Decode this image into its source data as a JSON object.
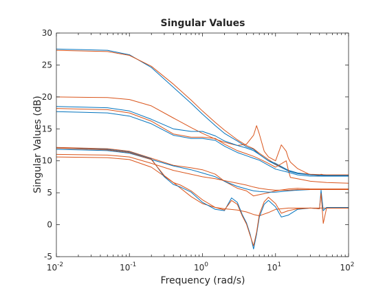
{
  "chart_data": {
    "type": "line",
    "title": "Singular Values",
    "xlabel": "Frequency (rad/s)",
    "ylabel": "Singular Values (dB)",
    "x_scale": "log",
    "xlim": [
      0.01,
      100
    ],
    "ylim": [
      -5,
      30
    ],
    "grid": false,
    "legend": "none",
    "x_ticks": [
      {
        "base": "10",
        "exp": "-2",
        "value": 0.01
      },
      {
        "base": "10",
        "exp": "-1",
        "value": 0.1
      },
      {
        "base": "10",
        "exp": "0",
        "value": 1
      },
      {
        "base": "10",
        "exp": "1",
        "value": 10
      },
      {
        "base": "10",
        "exp": "2",
        "value": 100
      }
    ],
    "y_ticks": [
      "-5",
      "0",
      "5",
      "10",
      "15",
      "20",
      "25",
      "30"
    ],
    "series": [
      {
        "color": "#0072BD",
        "x": [
          0.01,
          0.05,
          0.1,
          0.2,
          0.4,
          0.7,
          1,
          1.5,
          2,
          3,
          4,
          5,
          6,
          8,
          10,
          15,
          20,
          30,
          50,
          100
        ],
        "y": [
          27.5,
          27.3,
          26.6,
          24.6,
          21.5,
          19,
          17.3,
          15.5,
          14.3,
          13.1,
          12.2,
          11.8,
          11,
          10,
          9.4,
          8.4,
          8,
          7.8,
          7.7,
          7.7
        ]
      },
      {
        "color": "#D95319",
        "x": [
          0.01,
          0.05,
          0.1,
          0.2,
          0.4,
          0.7,
          1,
          1.5,
          2,
          3,
          4,
          5,
          6,
          8,
          10,
          15,
          20,
          30,
          50,
          100
        ],
        "y": [
          27.3,
          27.1,
          26.5,
          24.8,
          22,
          19.5,
          17.8,
          16,
          14.8,
          13.3,
          12.4,
          11.9,
          11.2,
          10.2,
          9.5,
          8.5,
          8.1,
          7.9,
          7.8,
          7.8
        ]
      },
      {
        "color": "#D95319",
        "x": [
          0.01,
          0.05,
          0.1,
          0.2,
          0.4,
          0.7,
          1,
          1.5,
          2,
          3,
          4,
          5,
          5.5,
          6,
          7,
          8,
          10,
          12,
          14,
          15,
          16,
          20,
          30,
          40,
          42,
          50,
          100
        ],
        "y": [
          20,
          19.9,
          19.6,
          18.6,
          16.7,
          15.2,
          14.3,
          13.4,
          12.9,
          12.4,
          12.6,
          14,
          15.5,
          14.2,
          11.5,
          10.6,
          10,
          12.5,
          11.5,
          10.4,
          9.8,
          8.8,
          7.8,
          7.7,
          7.9,
          7.7,
          7.7
        ]
      },
      {
        "color": "#0072BD",
        "x": [
          0.01,
          0.05,
          0.1,
          0.2,
          0.4,
          0.7,
          1,
          1.5,
          2,
          3,
          4,
          5,
          6,
          8,
          10,
          15,
          20,
          30,
          50,
          100
        ],
        "y": [
          18.5,
          18.3,
          17.8,
          16.5,
          15,
          14.6,
          14.6,
          13.9,
          13.1,
          12.4,
          12,
          11.6,
          11,
          10,
          9.6,
          8.5,
          8.1,
          7.8,
          7.7,
          7.7
        ]
      },
      {
        "color": "#D95319",
        "x": [
          0.01,
          0.05,
          0.1,
          0.2,
          0.4,
          0.7,
          1,
          1.5,
          2,
          3,
          4,
          5,
          6,
          8,
          10,
          14,
          15,
          16,
          20,
          30,
          50,
          100
        ],
        "y": [
          18.2,
          18,
          17.5,
          16.2,
          14.2,
          13.7,
          13.7,
          13.5,
          12.6,
          11.6,
          11.1,
          10.7,
          10.3,
          9.6,
          9,
          10,
          8.5,
          7.4,
          7.2,
          6.8,
          6.6,
          6.5
        ]
      },
      {
        "color": "#0072BD",
        "x": [
          0.01,
          0.05,
          0.1,
          0.2,
          0.4,
          0.7,
          1,
          1.5,
          2,
          3,
          4,
          5,
          6,
          8,
          10,
          15,
          20,
          30,
          50,
          100
        ],
        "y": [
          17.7,
          17.5,
          17,
          15.8,
          14,
          13.5,
          13.5,
          13.2,
          12.3,
          11.3,
          10.8,
          10.4,
          10.1,
          9.3,
          8.7,
          8.2,
          7.8,
          7.6,
          7.6,
          7.6
        ]
      },
      {
        "color": "#D95319",
        "x": [
          0.01,
          0.05,
          0.1,
          0.2,
          0.4,
          0.7,
          1,
          1.5,
          2,
          3,
          4,
          5,
          6,
          8,
          10,
          15,
          20,
          30,
          50,
          100
        ],
        "y": [
          12.1,
          11.9,
          11.5,
          10.4,
          9.3,
          8.9,
          8.6,
          7.9,
          6.8,
          5.7,
          5.3,
          4.5,
          4.7,
          5,
          5.3,
          5.6,
          5.7,
          5.6,
          5.6,
          5.6
        ]
      },
      {
        "color": "#0072BD",
        "x": [
          0.01,
          0.05,
          0.1,
          0.2,
          0.4,
          0.7,
          1,
          1.5,
          2,
          3,
          4,
          5,
          6,
          8,
          10,
          15,
          20,
          30,
          50,
          100
        ],
        "y": [
          11.8,
          11.6,
          11.2,
          10.2,
          9.2,
          8.6,
          8.1,
          7.5,
          6.8,
          6,
          5.6,
          5.3,
          5.2,
          5.1,
          5.1,
          5.3,
          5.4,
          5.5,
          5.5,
          5.5
        ]
      },
      {
        "color": "#D95319",
        "x": [
          0.01,
          0.05,
          0.1,
          0.2,
          0.4,
          0.7,
          1,
          1.5,
          2,
          3,
          4,
          5,
          6,
          8,
          10,
          15,
          20,
          30,
          50,
          100
        ],
        "y": [
          11,
          10.9,
          10.6,
          9.6,
          8.5,
          7.9,
          7.5,
          7.2,
          6.9,
          6.5,
          6.2,
          5.9,
          5.7,
          5.5,
          5.4,
          5.4,
          5.5,
          5.5,
          5.5,
          5.5
        ]
      },
      {
        "color": "#D95319",
        "x": [
          0.01,
          0.05,
          0.1,
          0.2,
          0.4,
          0.7,
          1,
          1.5,
          2,
          3,
          4,
          5,
          6,
          8,
          10,
          15,
          20,
          30,
          50,
          100
        ],
        "y": [
          10.6,
          10.5,
          10.2,
          9,
          6.6,
          4.4,
          3.3,
          2.7,
          2.5,
          2.3,
          2,
          1.6,
          1.4,
          1.9,
          2.4,
          2.6,
          2.6,
          2.6,
          2.6,
          2.6
        ]
      },
      {
        "color": "#0072BD",
        "x": [
          0.01,
          0.05,
          0.1,
          0.2,
          0.3,
          0.4,
          0.5,
          0.7,
          1,
          1.5,
          2,
          2.5,
          3,
          3.5,
          4,
          4.5,
          5,
          5.5,
          6,
          7,
          8,
          10,
          12,
          15,
          20,
          30,
          40,
          42,
          45,
          50,
          100
        ],
        "y": [
          12,
          11.8,
          11.4,
          10.3,
          7.5,
          6.3,
          5.9,
          5.1,
          3.5,
          2.4,
          2.2,
          4.2,
          3.5,
          1.6,
          0.3,
          -1.5,
          -3.8,
          -1.5,
          1.2,
          3.2,
          3.8,
          2.8,
          1.2,
          1.5,
          2.4,
          2.6,
          2.5,
          5.4,
          2.2,
          2.7,
          2.7
        ]
      },
      {
        "color": "#D95319",
        "x": [
          0.01,
          0.05,
          0.1,
          0.2,
          0.3,
          0.4,
          0.5,
          0.7,
          1,
          1.5,
          2,
          2.5,
          3,
          3.5,
          4,
          4.5,
          5,
          5.5,
          6,
          7,
          8,
          10,
          12,
          15,
          20,
          30,
          40,
          42,
          45,
          50,
          100
        ],
        "y": [
          12,
          11.7,
          11.3,
          10.2,
          7.7,
          6.6,
          6.2,
          5.3,
          3.9,
          2.7,
          2.3,
          3.8,
          3.2,
          1.4,
          0.1,
          -1.7,
          -3.3,
          -1.2,
          1.6,
          3.6,
          4.3,
          3.3,
          1.8,
          2.2,
          2.5,
          2.6,
          2.5,
          4.9,
          0.2,
          2.6,
          2.6
        ]
      }
    ]
  }
}
